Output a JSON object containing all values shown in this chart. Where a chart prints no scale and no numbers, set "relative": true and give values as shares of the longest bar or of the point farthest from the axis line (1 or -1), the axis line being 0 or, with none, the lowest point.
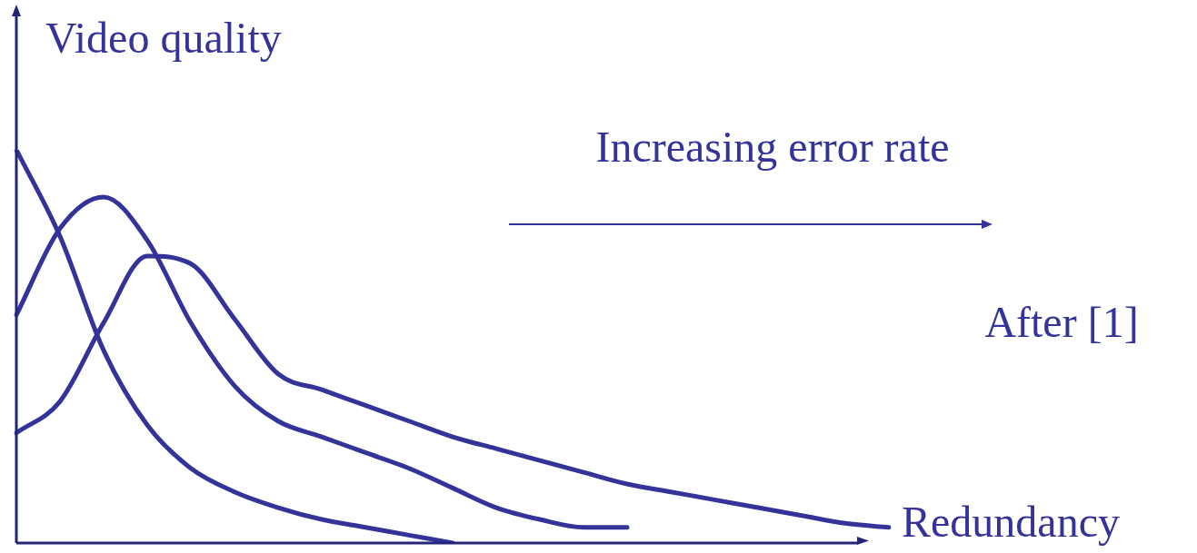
{
  "chart_data": {
    "type": "line",
    "relative": true,
    "ylabel": "Video quality",
    "xlabel": "Redundancy",
    "annotations": [
      "Increasing error rate",
      "After [1]"
    ],
    "categories": [
      null,
      null,
      null,
      null,
      null,
      null,
      null,
      null,
      null,
      null,
      null,
      null,
      null,
      null,
      null,
      null,
      null,
      null,
      null,
      null,
      null
    ],
    "series": [
      {
        "color": "#333399",
        "values": [
          1.0,
          0.78,
          0.49,
          0.3,
          0.19,
          0.13,
          0.09,
          0.06,
          0.04,
          0.02,
          0.0,
          null,
          null,
          null,
          null,
          null,
          null,
          null,
          null,
          null,
          null
        ]
      },
      {
        "color": "#333399",
        "values": [
          0.58,
          0.8,
          0.88,
          0.77,
          0.56,
          0.4,
          0.31,
          0.27,
          0.23,
          0.19,
          0.14,
          0.09,
          0.06,
          0.04,
          0.04,
          null,
          null,
          null,
          null,
          null,
          null
        ]
      },
      {
        "color": "#333399",
        "values": [
          0.28,
          0.36,
          0.56,
          0.73,
          0.71,
          0.57,
          0.43,
          0.39,
          0.35,
          0.31,
          0.27,
          0.24,
          0.21,
          0.18,
          0.15,
          0.13,
          0.11,
          0.09,
          0.07,
          0.05,
          0.04
        ]
      }
    ],
    "marker": "none",
    "line_style": "solid",
    "legend": false,
    "tick_labels": false
  }
}
